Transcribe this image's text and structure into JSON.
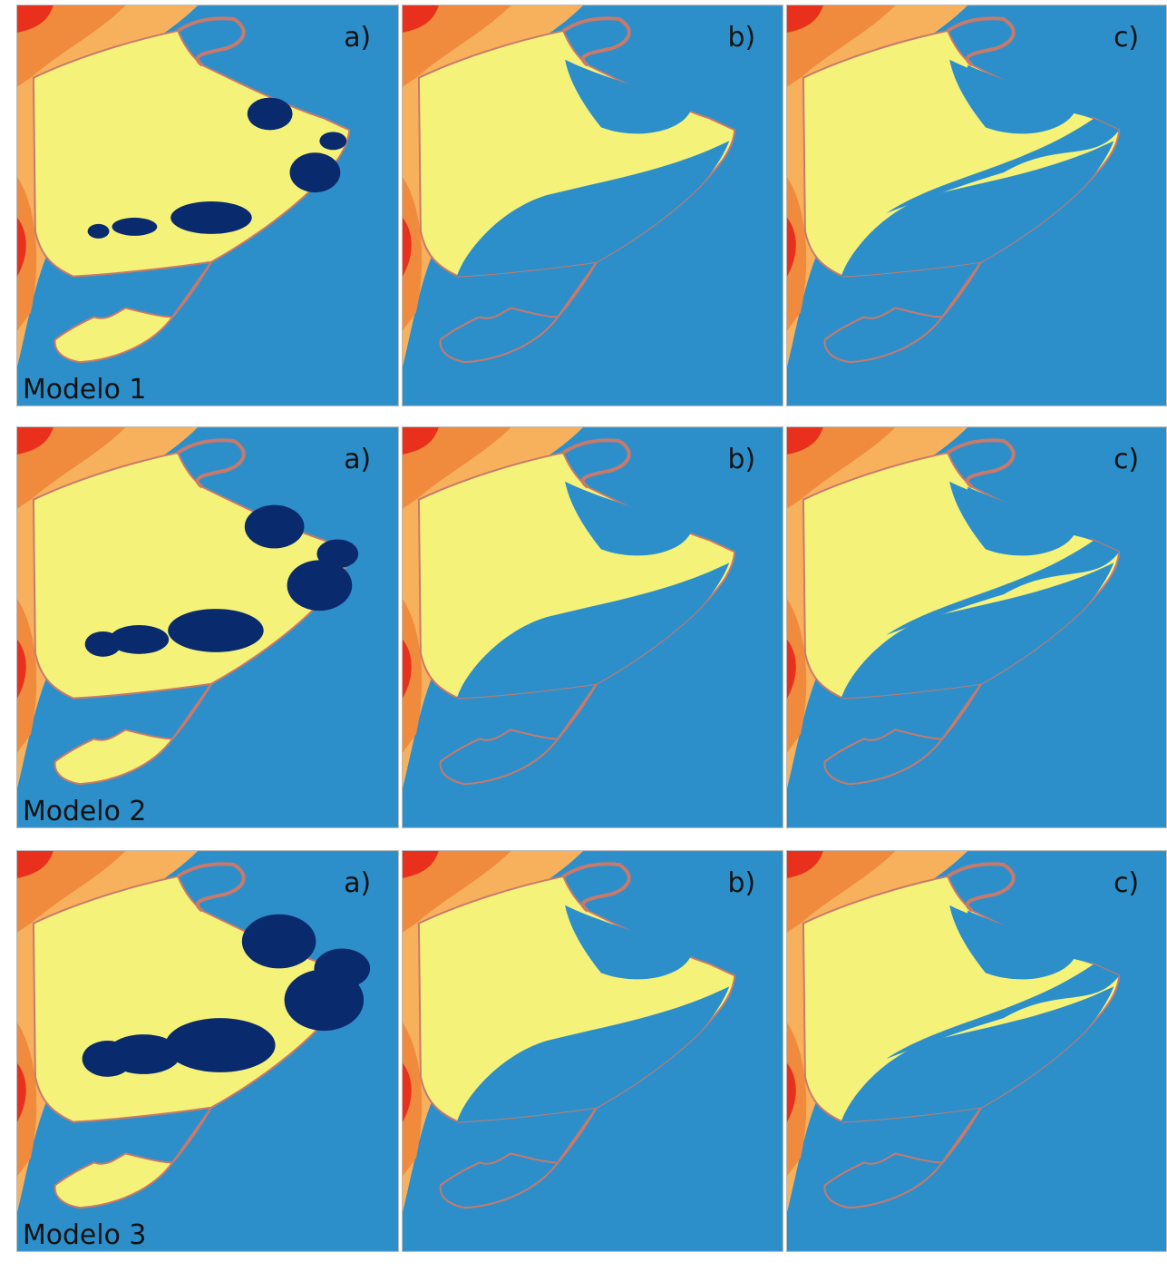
{
  "figure": {
    "rows": [
      {
        "model": "Modelo 1",
        "panels": [
          "a)",
          "b)",
          "c)"
        ]
      },
      {
        "model": "Modelo 2",
        "panels": [
          "a)",
          "b)",
          "c)"
        ]
      },
      {
        "model": "Modelo 3",
        "panels": [
          "a)",
          "b)",
          "c)"
        ]
      }
    ]
  }
}
